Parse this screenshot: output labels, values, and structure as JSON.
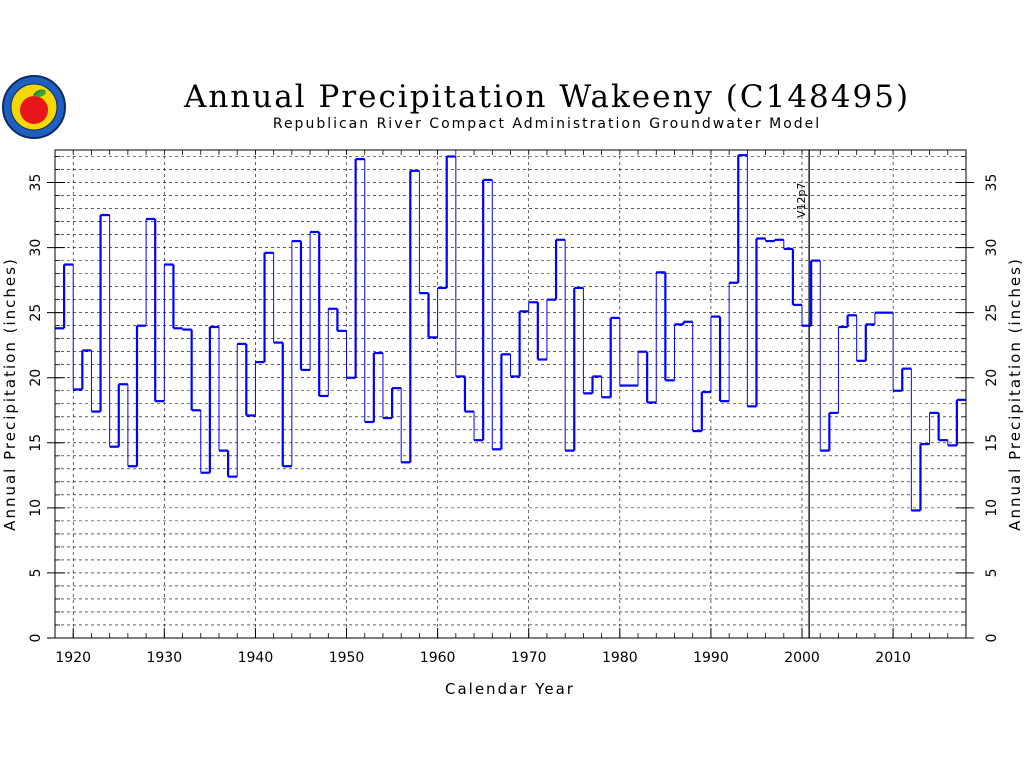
{
  "chart_data": {
    "type": "line",
    "style": "step",
    "title": "Annual Precipitation Wakeeny (C148495)",
    "subtitle": "Republican River Compact Administration Groundwater Model",
    "xlabel": "Calendar Year",
    "ylabel": "Annual Precipitation (inches)",
    "xlim": [
      1918,
      2018
    ],
    "ylim": [
      0,
      37.5
    ],
    "x_ticks": [
      1920,
      1930,
      1940,
      1950,
      1960,
      1970,
      1980,
      1990,
      2000,
      2010
    ],
    "y_ticks": [
      0,
      5,
      10,
      15,
      20,
      25,
      30,
      35
    ],
    "grid": true,
    "line_color": "#0000ff",
    "vertical_marker": {
      "x": 2001,
      "label": "V12p7"
    },
    "x": [
      1918,
      1919,
      1920,
      1921,
      1922,
      1923,
      1924,
      1925,
      1926,
      1927,
      1928,
      1929,
      1930,
      1931,
      1932,
      1933,
      1934,
      1935,
      1936,
      1937,
      1938,
      1939,
      1940,
      1941,
      1942,
      1943,
      1944,
      1945,
      1946,
      1947,
      1948,
      1949,
      1950,
      1951,
      1952,
      1953,
      1954,
      1955,
      1956,
      1957,
      1958,
      1959,
      1960,
      1961,
      1962,
      1963,
      1964,
      1965,
      1966,
      1967,
      1968,
      1969,
      1970,
      1971,
      1972,
      1973,
      1974,
      1975,
      1976,
      1977,
      1978,
      1979,
      1980,
      1981,
      1982,
      1983,
      1984,
      1985,
      1986,
      1987,
      1988,
      1989,
      1990,
      1991,
      1992,
      1993,
      1994,
      1995,
      1996,
      1997,
      1998,
      1999,
      2000,
      2001,
      2002,
      2003,
      2004,
      2005,
      2006,
      2007,
      2008,
      2009,
      2010,
      2011,
      2012,
      2013,
      2014,
      2015,
      2016,
      2017
    ],
    "values": [
      23.8,
      28.7,
      19.1,
      22.1,
      17.4,
      32.5,
      14.7,
      19.5,
      13.2,
      24.0,
      32.2,
      18.2,
      28.7,
      23.8,
      23.7,
      17.5,
      12.7,
      23.9,
      14.4,
      12.4,
      22.6,
      17.1,
      21.2,
      29.6,
      22.7,
      13.2,
      30.5,
      20.6,
      31.2,
      18.6,
      25.3,
      23.6,
      20.0,
      36.8,
      16.6,
      21.9,
      16.9,
      19.2,
      13.5,
      35.9,
      26.5,
      23.1,
      26.9,
      37.0,
      20.1,
      17.4,
      15.2,
      35.2,
      14.5,
      21.8,
      20.1,
      25.1,
      25.8,
      21.4,
      26.0,
      30.6,
      14.4,
      26.9,
      18.8,
      20.1,
      18.5,
      24.6,
      19.4,
      19.4,
      22.0,
      18.1,
      28.1,
      19.8,
      24.1,
      24.3,
      15.9,
      18.9,
      24.7,
      18.2,
      27.3,
      37.1,
      17.8,
      30.7,
      30.5,
      30.6,
      29.9,
      25.6,
      24.0,
      29.0,
      14.4,
      17.3,
      23.9,
      24.8,
      21.3,
      24.1,
      25.0,
      25.0,
      19.0,
      20.7,
      9.8,
      14.9,
      17.3,
      15.2,
      14.8,
      18.3
    ]
  }
}
